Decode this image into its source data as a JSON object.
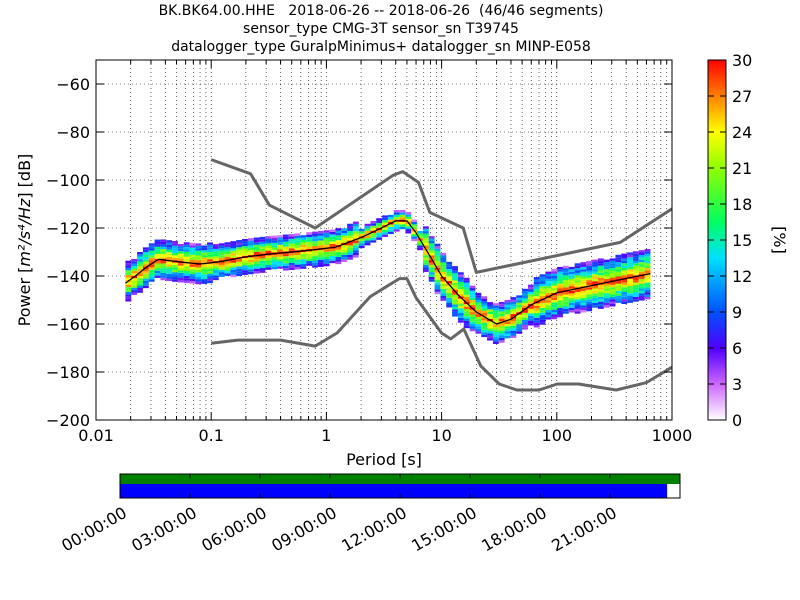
{
  "title_lines": [
    "BK.BK64.00.HHE   2018-06-26 -- 2018-06-26  (46/46 segments)",
    "sensor_type CMG-3T sensor_sn T39745",
    "datalogger_type GuralpMinimus+ datalogger_sn MINP-E058"
  ],
  "chart_data": {
    "type": "heatmap",
    "xlabel": "Period [s]",
    "ylabel": "Power [m²/s⁴/Hz] [dB]",
    "ylabel_prefix": "Power [",
    "ylabel_math": "m²/s⁴/Hz",
    "ylabel_suffix": "] [dB]",
    "x_scale": "log",
    "xlim": [
      0.01,
      1000
    ],
    "ylim": [
      -200,
      -50
    ],
    "x_ticks": [
      0.01,
      0.1,
      1,
      10,
      100,
      1000
    ],
    "x_tick_labels": [
      "0.01",
      "0.1",
      "1",
      "10",
      "100",
      "1000"
    ],
    "y_ticks": [
      -200,
      -180,
      -160,
      -140,
      -120,
      -100,
      -80,
      -60
    ],
    "y_tick_labels": [
      "−200",
      "−180",
      "−160",
      "−140",
      "−120",
      "−100",
      "−80",
      "−60"
    ],
    "grid": "dotted",
    "colorbar": {
      "label": "[%]",
      "range": [
        0,
        30
      ],
      "ticks": [
        "0",
        "3",
        "6",
        "9",
        "12",
        "15",
        "18",
        "21",
        "24",
        "27",
        "30"
      ]
    },
    "noise_model_high": {
      "x": [
        0.1,
        0.22,
        0.32,
        0.8,
        3.8,
        4.6,
        6.3,
        7.9,
        15.4,
        20,
        354.8,
        1000
      ],
      "y": [
        -91.5,
        -97.4,
        -110.5,
        -120,
        -98,
        -96.5,
        -101,
        -113.5,
        -120,
        -138.5,
        -126,
        -112
      ]
    },
    "noise_model_low": {
      "x": [
        0.1,
        0.17,
        0.4,
        0.8,
        1.24,
        2.4,
        4.3,
        5.0,
        6.0,
        10,
        12,
        15.6,
        21.9,
        31.6,
        45,
        70,
        101,
        154,
        328,
        600,
        1000
      ],
      "y": [
        -168,
        -166.7,
        -166.7,
        -169.2,
        -163.7,
        -148.6,
        -141.1,
        -141.1,
        -149,
        -163.8,
        -166.2,
        -162.1,
        -177.5,
        -185,
        -187.5,
        -187.5,
        -185,
        -185,
        -187.5,
        -184.4,
        -178
      ]
    },
    "mode_curve": {
      "x": [
        0.018,
        0.022,
        0.028,
        0.035,
        0.05,
        0.08,
        0.12,
        0.2,
        0.3,
        0.5,
        0.8,
        1.2,
        2,
        3,
        4,
        5,
        6,
        8,
        10,
        14,
        20,
        30,
        40,
        60,
        100,
        200,
        400,
        650
      ],
      "y": [
        -143,
        -140,
        -136,
        -133,
        -134,
        -135,
        -134,
        -132,
        -131,
        -130,
        -129,
        -128,
        -124,
        -120,
        -117,
        -117,
        -122,
        -132,
        -140,
        -148,
        -155,
        -160,
        -158,
        -152,
        -147,
        -144,
        -141,
        -139
      ]
    }
  },
  "time_bar": {
    "labels": [
      "00:00:00",
      "03:00:00",
      "06:00:00",
      "09:00:00",
      "12:00:00",
      "15:00:00",
      "18:00:00",
      "21:00:00"
    ],
    "data_coverage_fraction": 1.0,
    "segment_coverage_fraction": 0.977,
    "colors": {
      "data": "#008000",
      "segments": "#0000ff"
    }
  }
}
